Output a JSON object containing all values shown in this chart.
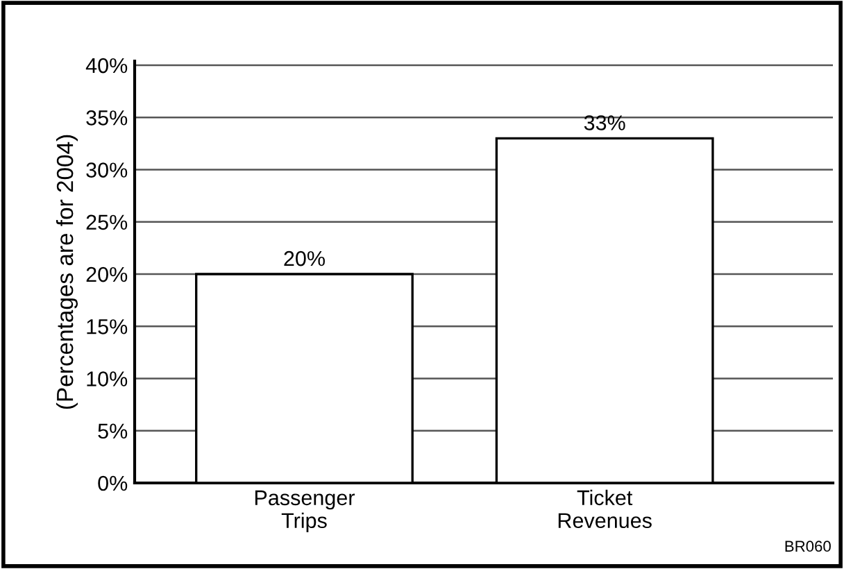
{
  "chart_data": {
    "type": "bar",
    "ylabel": "(Percentages are for 2004)",
    "categories": [
      "Passenger\nTrips",
      "Ticket\nRevenues"
    ],
    "values": [
      20,
      33
    ],
    "color": "#ffffff",
    "value_labels": [
      "20%",
      "33%"
    ],
    "ylim": [
      0,
      40.4
    ],
    "yticks": [
      {
        "value": 0,
        "label": "0%"
      },
      {
        "value": 5,
        "label": "5%"
      },
      {
        "value": 10,
        "label": "10%"
      },
      {
        "value": 15,
        "label": "15%"
      },
      {
        "value": 20,
        "label": "20%"
      },
      {
        "value": 25,
        "label": "25%"
      },
      {
        "value": 30,
        "label": "30%"
      },
      {
        "value": 35,
        "label": "35%"
      },
      {
        "value": 40,
        "label": "40%"
      }
    ],
    "grid": "y",
    "annotations": [
      "BR060"
    ]
  }
}
